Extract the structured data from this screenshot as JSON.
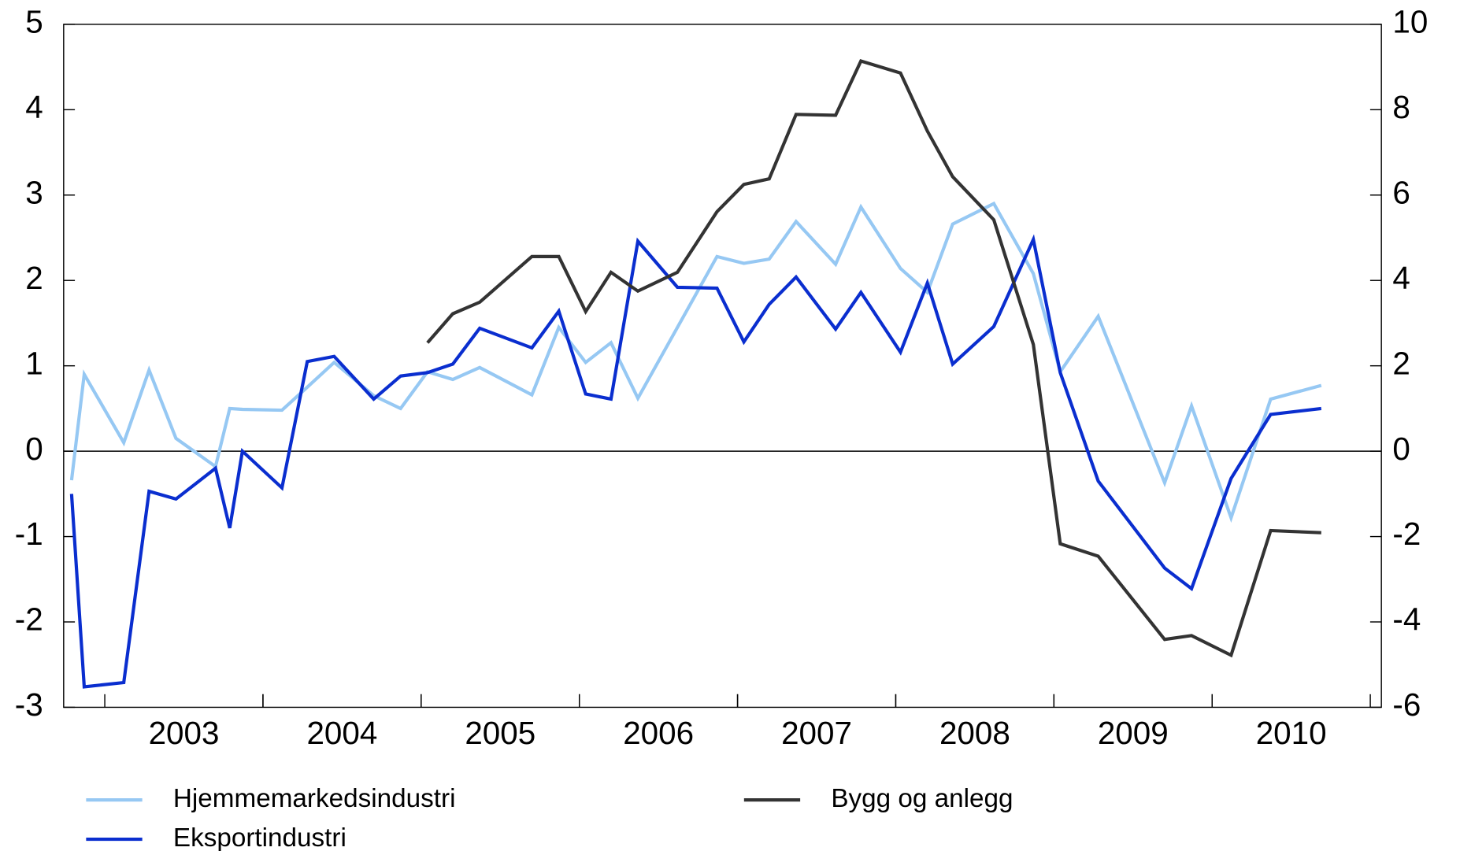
{
  "chart_data": {
    "type": "line",
    "x": [
      2002.79,
      2002.87,
      2003.12,
      2003.28,
      2003.45,
      2003.7,
      2003.79,
      2003.87,
      2004.12,
      2004.28,
      2004.45,
      2004.7,
      2004.87,
      2005.04,
      2005.2,
      2005.37,
      2005.7,
      2005.87,
      2006.04,
      2006.2,
      2006.37,
      2006.62,
      2006.87,
      2007.04,
      2007.2,
      2007.37,
      2007.62,
      2007.78,
      2008.03,
      2008.2,
      2008.36,
      2008.62,
      2008.87,
      2009.04,
      2009.28,
      2009.7,
      2009.87,
      2010.12,
      2010.37,
      2010.69
    ],
    "xlim": [
      2002.74,
      2011.07
    ],
    "xticks": [
      {
        "value": 2003.5,
        "label": "2003"
      },
      {
        "value": 2004.5,
        "label": "2004"
      },
      {
        "value": 2005.5,
        "label": "2005"
      },
      {
        "value": 2006.5,
        "label": "2006"
      },
      {
        "value": 2007.5,
        "label": "2007"
      },
      {
        "value": 2008.5,
        "label": "2008"
      },
      {
        "value": 2009.5,
        "label": "2009"
      },
      {
        "value": 2010.5,
        "label": "2010"
      }
    ],
    "ylim": [
      -3,
      5
    ],
    "yticks": [
      -3,
      -2,
      -1,
      0,
      1,
      2,
      3,
      4,
      5
    ],
    "y2lim": [
      -6,
      10
    ],
    "y2ticks": [
      -6,
      -4,
      -2,
      0,
      2,
      4,
      6,
      8,
      10
    ],
    "zero_line": true,
    "series": [
      {
        "name": "Hjemmemarkedsindustri",
        "color": "#96c8f3",
        "values": [
          -0.34,
          0.9,
          0.1,
          0.95,
          0.15,
          -0.18,
          0.5,
          0.49,
          0.48,
          0.75,
          1.04,
          0.65,
          0.5,
          0.93,
          0.84,
          0.98,
          0.66,
          1.45,
          1.04,
          1.27,
          0.62,
          1.45,
          2.28,
          2.2,
          2.25,
          2.69,
          2.19,
          2.86,
          2.14,
          1.86,
          2.66,
          2.9,
          2.08,
          0.93,
          1.58,
          -0.37,
          0.53,
          -0.78,
          0.61,
          0.77
        ]
      },
      {
        "name": "Eksportindustri",
        "color": "#0a2ecf",
        "values": [
          -0.5,
          -2.76,
          -2.71,
          -0.47,
          -0.56,
          -0.2,
          -0.9,
          0,
          -0.43,
          1.05,
          1.11,
          0.61,
          0.88,
          0.92,
          1.02,
          1.44,
          1.21,
          1.64,
          0.67,
          0.61,
          2.46,
          1.92,
          1.91,
          1.28,
          1.72,
          2.04,
          1.43,
          1.86,
          1.16,
          1.97,
          1.02,
          1.46,
          2.48,
          0.92,
          -0.35,
          -1.37,
          -1.61,
          -0.32,
          0.43,
          0.5
        ]
      },
      {
        "name": "Bygg og anlegg",
        "color": "#333333",
        "axis": "y2",
        "values": [
          null,
          null,
          null,
          null,
          null,
          null,
          null,
          null,
          null,
          null,
          null,
          null,
          null,
          2.54,
          3.22,
          3.49,
          4.56,
          4.56,
          3.27,
          4.19,
          3.75,
          4.19,
          5.61,
          6.25,
          6.38,
          7.89,
          7.87,
          9.14,
          8.86,
          7.5,
          6.43,
          5.42,
          2.5,
          -2.17,
          -2.46,
          -4.41,
          -4.32,
          -4.78,
          -1.86,
          -1.91
        ]
      }
    ]
  }
}
